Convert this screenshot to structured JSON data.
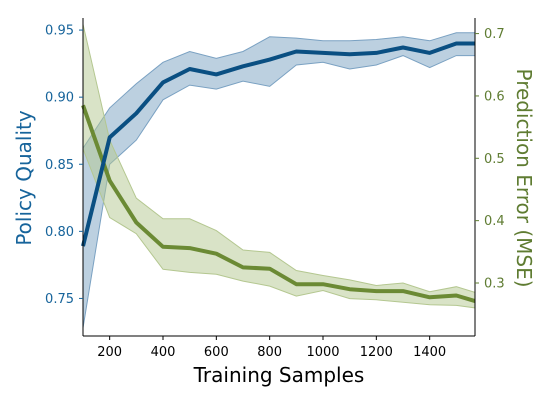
{
  "chart_data": {
    "type": "line",
    "title": "",
    "xlabel": "Training Samples",
    "ylabel_left": "Policy Quality",
    "ylabel_right": "Prediction Error (MSE)",
    "xlim": [
      100,
      1570
    ],
    "ylim_left": [
      0.722,
      0.959
    ],
    "ylim_right": [
      0.215,
      0.725
    ],
    "x_ticks": [
      200,
      400,
      600,
      800,
      1000,
      1200,
      1400
    ],
    "y_left_ticks": [
      0.75,
      0.8,
      0.85,
      0.9,
      0.95
    ],
    "y_right_ticks": [
      0.3,
      0.4,
      0.5,
      0.6,
      0.7
    ],
    "grid": false,
    "colors": {
      "policy": "#0a4f82",
      "policy_band": "#7aa1c2",
      "error": "#6b8a34",
      "error_band": "#b4c790",
      "left_axis_text": "#17649b",
      "right_axis_text": "#5f7c32"
    },
    "series": [
      {
        "axis": "left",
        "x": [
          100,
          200,
          300,
          400,
          500,
          600,
          700,
          800,
          900,
          1000,
          1100,
          1200,
          1300,
          1400,
          1500,
          1570
        ],
        "values": [
          0.789,
          0.87,
          0.888,
          0.911,
          0.921,
          0.917,
          0.923,
          0.928,
          0.934,
          0.933,
          0.932,
          0.933,
          0.937,
          0.933,
          0.94,
          0.94
        ],
        "lower": [
          0.728,
          0.85,
          0.868,
          0.898,
          0.909,
          0.906,
          0.912,
          0.908,
          0.924,
          0.926,
          0.921,
          0.924,
          0.931,
          0.922,
          0.931,
          0.931
        ],
        "upper": [
          0.862,
          0.892,
          0.91,
          0.926,
          0.934,
          0.929,
          0.934,
          0.945,
          0.944,
          0.942,
          0.942,
          0.943,
          0.945,
          0.942,
          0.948,
          0.948
        ]
      },
      {
        "axis": "right",
        "x": [
          100,
          200,
          300,
          400,
          500,
          600,
          700,
          800,
          900,
          1000,
          1100,
          1200,
          1300,
          1400,
          1500,
          1570
        ],
        "values": [
          0.585,
          0.464,
          0.397,
          0.358,
          0.356,
          0.347,
          0.325,
          0.323,
          0.298,
          0.298,
          0.29,
          0.287,
          0.287,
          0.277,
          0.28,
          0.271
        ],
        "lower": [
          0.515,
          0.405,
          0.379,
          0.322,
          0.317,
          0.314,
          0.303,
          0.295,
          0.279,
          0.288,
          0.275,
          0.273,
          0.269,
          0.265,
          0.264,
          0.26
        ],
        "upper": [
          0.715,
          0.529,
          0.436,
          0.403,
          0.403,
          0.384,
          0.353,
          0.349,
          0.32,
          0.312,
          0.305,
          0.296,
          0.3,
          0.286,
          0.294,
          0.285
        ]
      }
    ]
  }
}
